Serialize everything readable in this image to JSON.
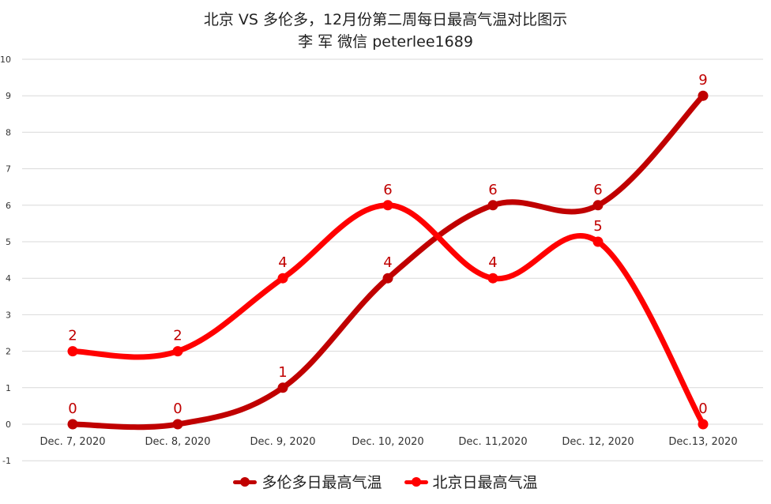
{
  "title": {
    "line1": "北京 VS 多伦多，12月份第二周每日最高气温对比图示",
    "line2": "李 军  微信 peterlee1689"
  },
  "chart_data": {
    "type": "line",
    "smooth": true,
    "categories": [
      "Dec. 7, 2020",
      "Dec. 8, 2020",
      "Dec. 9, 2020",
      "Dec. 10, 2020",
      "Dec. 11,2020",
      "Dec. 12, 2020",
      "Dec.13, 2020"
    ],
    "ylim": [
      -1,
      10
    ],
    "yticks": [
      -1,
      0,
      1,
      2,
      3,
      4,
      5,
      6,
      7,
      8,
      9,
      10
    ],
    "grid": true,
    "legend_position": "bottom",
    "data_labels": true,
    "series": [
      {
        "name": "多伦多日最高气温",
        "color": "#C00000",
        "values": [
          0,
          0,
          1,
          4,
          6,
          6,
          9
        ]
      },
      {
        "name": "北京日最高气温",
        "color": "#FF0000",
        "values": [
          2,
          2,
          4,
          6,
          4,
          5,
          0
        ]
      }
    ]
  },
  "colors": {
    "toronto": "#C00000",
    "beijing": "#FF0000",
    "label_text": "#C00000",
    "grid": "#D9D9D9",
    "axis_text": "#333333"
  }
}
